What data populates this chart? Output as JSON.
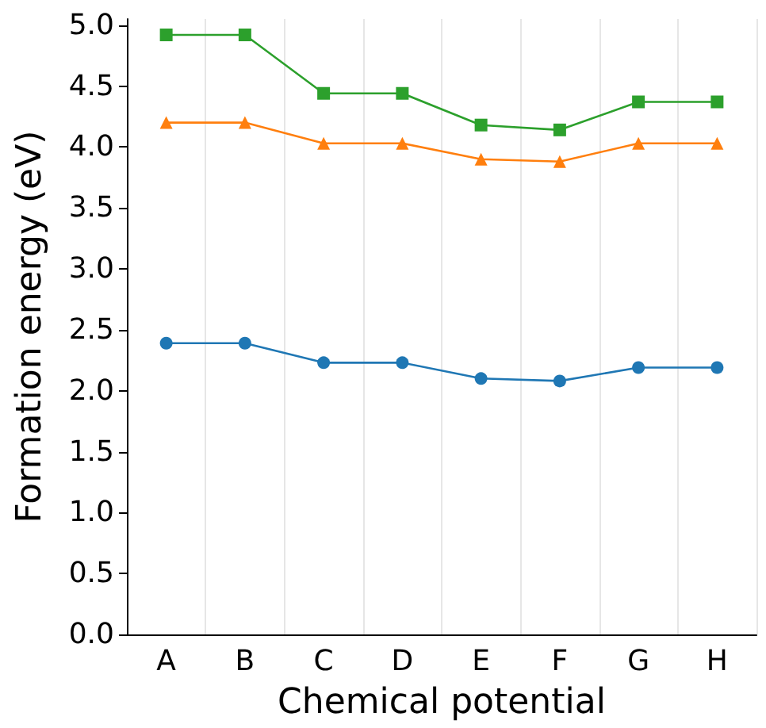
{
  "chart_data": {
    "type": "line",
    "xlabel": "Chemical potential",
    "ylabel": "Formation energy (eV)",
    "categories": [
      "A",
      "B",
      "C",
      "D",
      "E",
      "F",
      "G",
      "H"
    ],
    "series": [
      {
        "color": "#1f77b4",
        "marker": "circle",
        "values": [
          2.39,
          2.39,
          2.23,
          2.23,
          2.1,
          2.08,
          2.19,
          2.19
        ]
      },
      {
        "color": "#ff7f0e",
        "marker": "triangle",
        "values": [
          4.2,
          4.2,
          4.03,
          4.03,
          3.9,
          3.88,
          4.03,
          4.03
        ]
      },
      {
        "color": "#2ca02c",
        "marker": "square",
        "values": [
          4.92,
          4.92,
          4.44,
          4.44,
          4.18,
          4.14,
          4.37,
          4.37
        ]
      }
    ],
    "ylim": [
      0,
      5.05
    ],
    "yticks": [
      {
        "value": 0,
        "label": "0.0"
      },
      {
        "value": 0.5,
        "label": "0.5"
      },
      {
        "value": 1,
        "label": "1.0"
      },
      {
        "value": 1.5,
        "label": "1.5"
      },
      {
        "value": 2,
        "label": "2.0"
      },
      {
        "value": 2.5,
        "label": "2.5"
      },
      {
        "value": 3,
        "label": "3.0"
      },
      {
        "value": 3.5,
        "label": "3.5"
      },
      {
        "value": 4,
        "label": "4.0"
      },
      {
        "value": 4.5,
        "label": "4.5"
      },
      {
        "value": 5,
        "label": "5.0"
      }
    ],
    "grid": "x"
  }
}
